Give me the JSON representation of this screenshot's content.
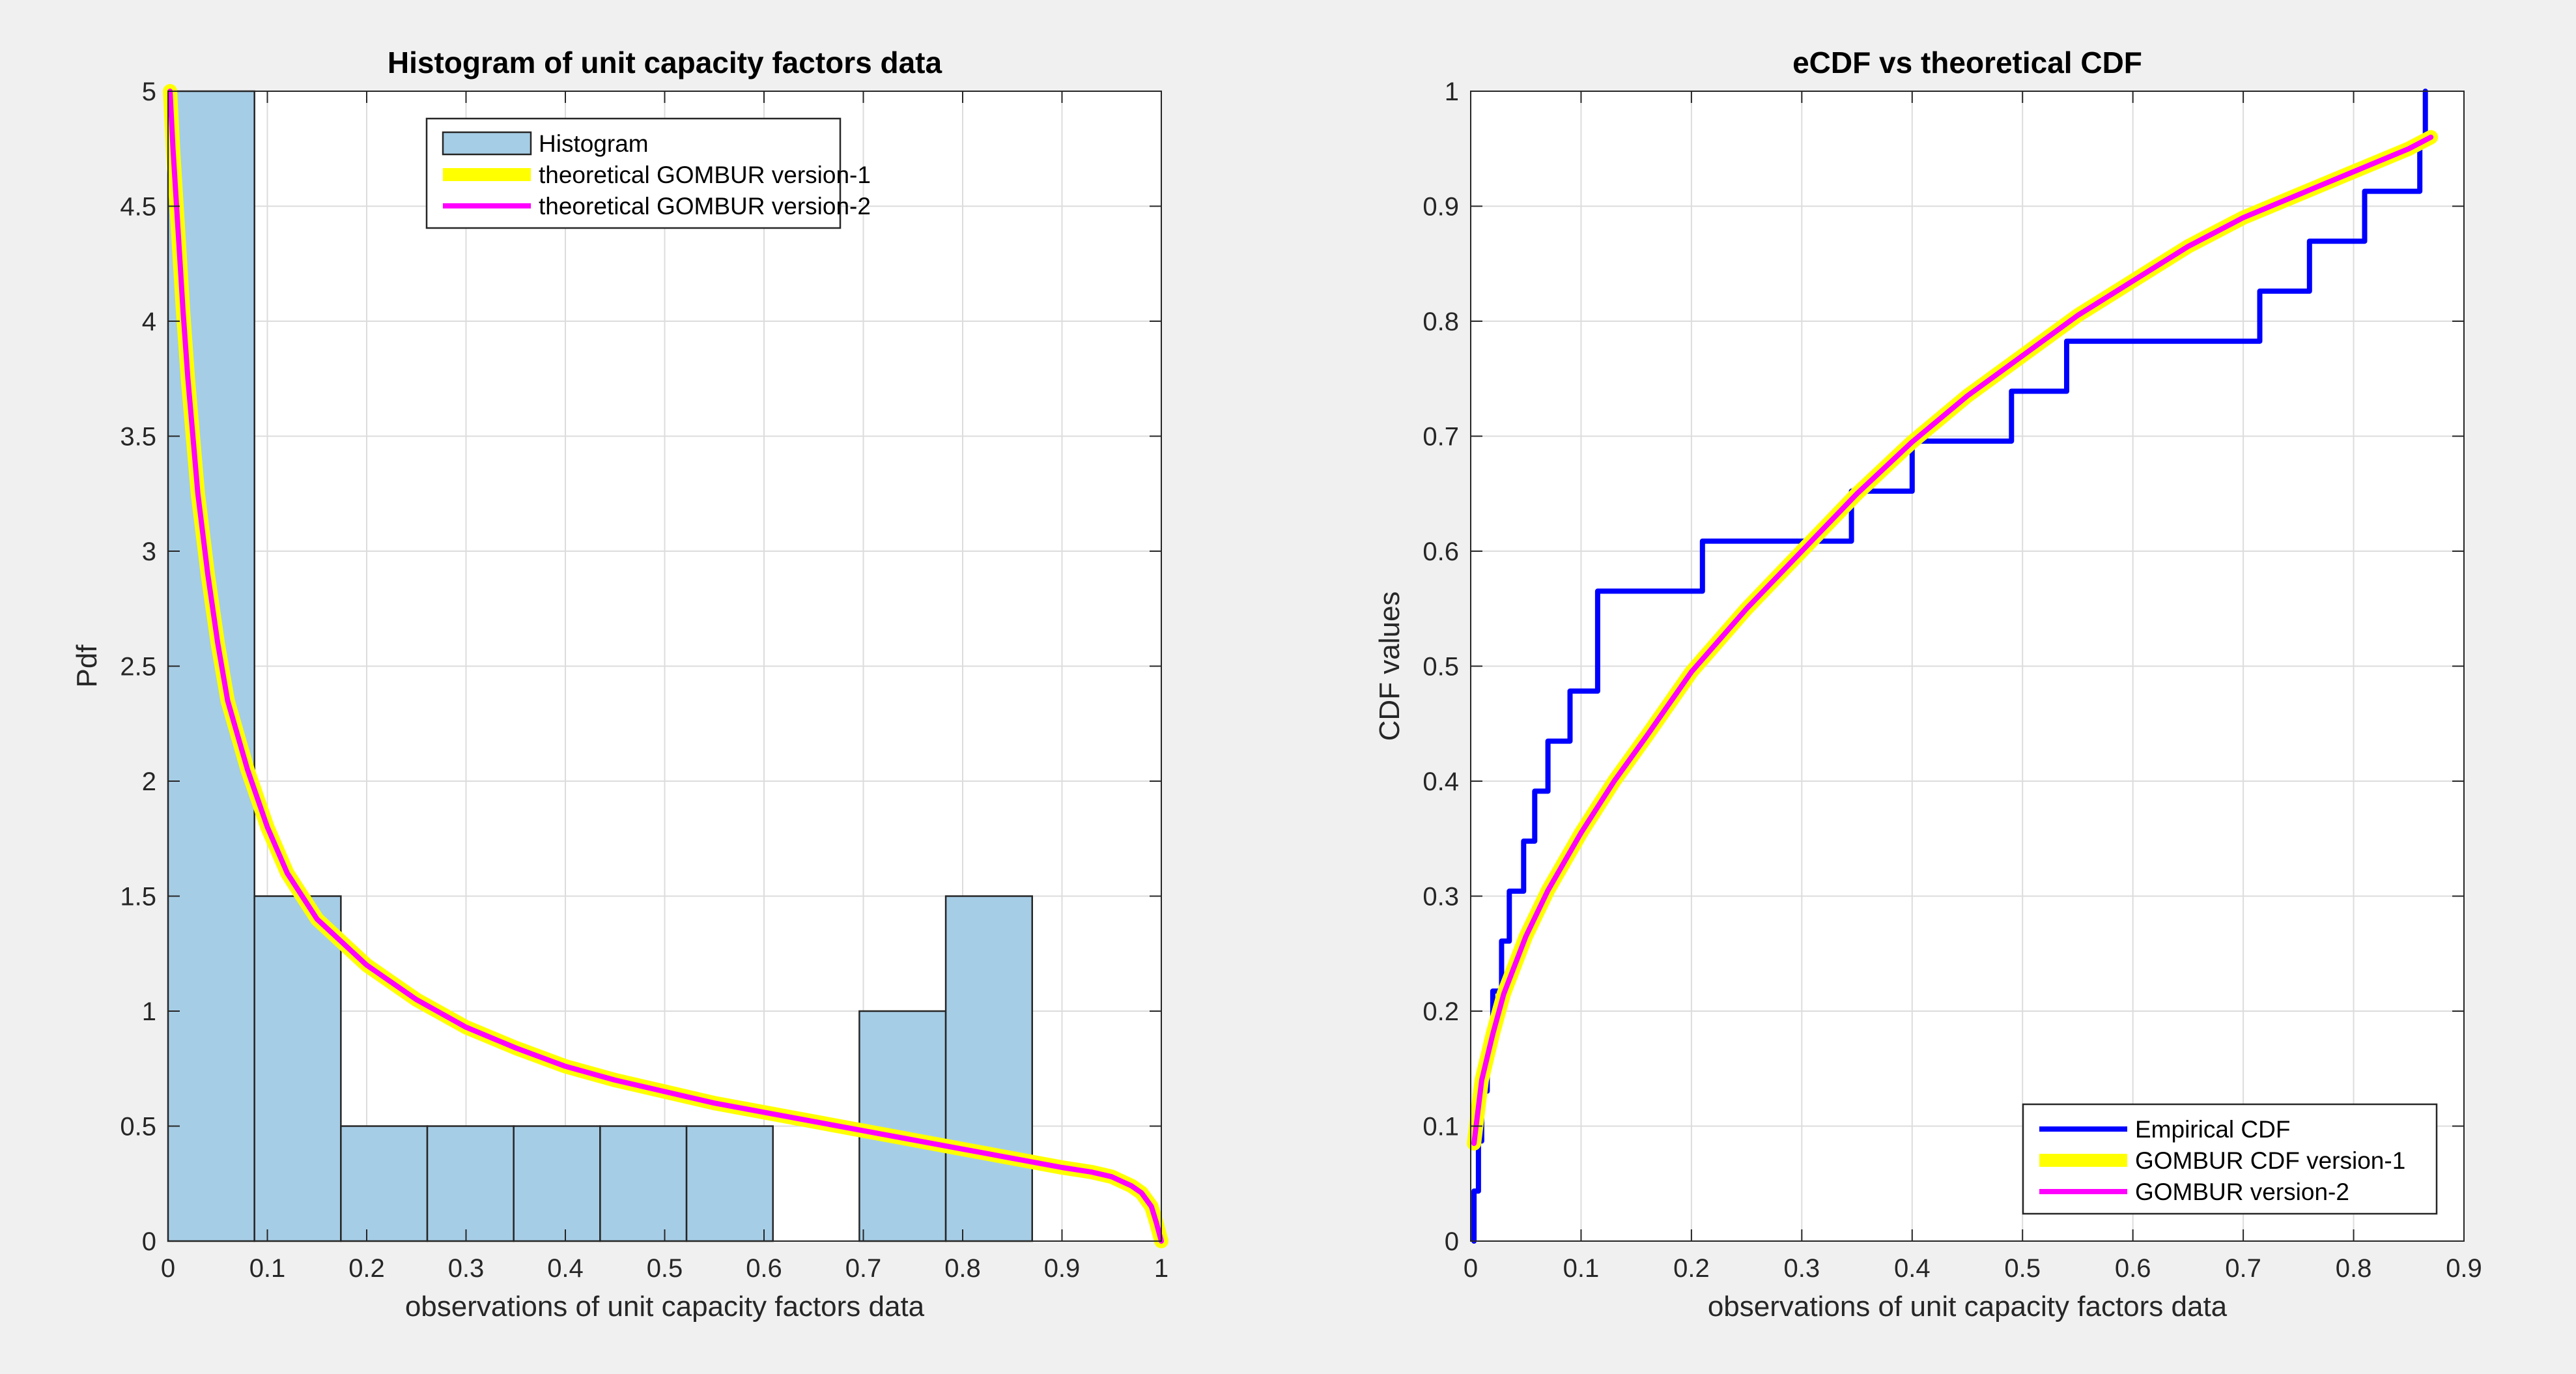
{
  "colors": {
    "figure_bg": "#f0f0f0",
    "histogram_fill": "#a6cde6",
    "histogram_edge": "#262626",
    "gombur_v1": "#ffff00",
    "gombur_v2": "#ff00ff",
    "empirical": "#0000ff"
  },
  "chart_data": [
    {
      "type": "bar",
      "title": "Histogram of unit capacity factors data",
      "xlabel": "observations of unit capacity factors data",
      "ylabel": "Pdf",
      "xlim": [
        0,
        1
      ],
      "ylim": [
        0,
        5
      ],
      "xticks": [
        0,
        0.1,
        0.2,
        0.3,
        0.4,
        0.5,
        0.6,
        0.7,
        0.8,
        0.9,
        1
      ],
      "xtick_labels": [
        "0",
        "0.1",
        "0.2",
        "0.3",
        "0.4",
        "0.5",
        "0.6",
        "0.7",
        "0.8",
        "0.9",
        "1"
      ],
      "yticks": [
        0,
        0.5,
        1,
        1.5,
        2,
        2.5,
        3,
        3.5,
        4,
        4.5,
        5
      ],
      "ytick_labels": [
        "0",
        "0.5",
        "1",
        "1.5",
        "2",
        "2.5",
        "3",
        "3.5",
        "4",
        "4.5",
        "5"
      ],
      "grid": true,
      "legend_position": "top-center",
      "histogram": {
        "name": "Histogram",
        "bin_edges": [
          0,
          0.087,
          0.174,
          0.261,
          0.348,
          0.435,
          0.522,
          0.609,
          0.696,
          0.783,
          0.87
        ],
        "values": [
          5,
          1.5,
          0.5,
          0.5,
          0.5,
          0.5,
          0.5,
          0,
          1,
          1.5
        ]
      },
      "series": [
        {
          "name": "theoretical GOMBUR version-1",
          "color_key": "gombur_v1",
          "x": [
            0.002,
            0.005,
            0.01,
            0.015,
            0.02,
            0.03,
            0.04,
            0.05,
            0.06,
            0.08,
            0.1,
            0.12,
            0.15,
            0.2,
            0.25,
            0.3,
            0.35,
            0.4,
            0.45,
            0.5,
            0.55,
            0.6,
            0.65,
            0.7,
            0.75,
            0.8,
            0.85,
            0.9,
            0.93,
            0.95,
            0.97,
            0.98,
            0.99,
            0.995,
            1.0
          ],
          "y": [
            5.0,
            4.75,
            4.4,
            4.05,
            3.75,
            3.25,
            2.9,
            2.6,
            2.35,
            2.05,
            1.8,
            1.6,
            1.4,
            1.2,
            1.05,
            0.93,
            0.84,
            0.76,
            0.7,
            0.65,
            0.6,
            0.56,
            0.52,
            0.48,
            0.44,
            0.4,
            0.36,
            0.32,
            0.3,
            0.28,
            0.24,
            0.21,
            0.15,
            0.08,
            0.0
          ]
        },
        {
          "name": "theoretical GOMBUR version-2",
          "color_key": "gombur_v2",
          "x": [
            0.002,
            0.005,
            0.01,
            0.015,
            0.02,
            0.03,
            0.04,
            0.05,
            0.06,
            0.08,
            0.1,
            0.12,
            0.15,
            0.2,
            0.25,
            0.3,
            0.35,
            0.4,
            0.45,
            0.5,
            0.55,
            0.6,
            0.65,
            0.7,
            0.75,
            0.8,
            0.85,
            0.9,
            0.93,
            0.95,
            0.97,
            0.98,
            0.99,
            0.995,
            1.0
          ],
          "y": [
            5.0,
            4.75,
            4.4,
            4.05,
            3.75,
            3.25,
            2.9,
            2.6,
            2.35,
            2.05,
            1.8,
            1.6,
            1.4,
            1.2,
            1.05,
            0.93,
            0.84,
            0.76,
            0.7,
            0.65,
            0.6,
            0.56,
            0.52,
            0.48,
            0.44,
            0.4,
            0.36,
            0.32,
            0.3,
            0.28,
            0.24,
            0.21,
            0.15,
            0.08,
            0.0
          ]
        }
      ]
    },
    {
      "type": "line",
      "title": "eCDF vs theoretical CDF",
      "xlabel": "observations of unit capacity factors data",
      "ylabel": "CDF values",
      "xlim": [
        0,
        0.9
      ],
      "ylim": [
        0,
        1
      ],
      "xticks": [
        0,
        0.1,
        0.2,
        0.3,
        0.4,
        0.5,
        0.6,
        0.7,
        0.8,
        0.9
      ],
      "xtick_labels": [
        "0",
        "0.1",
        "0.2",
        "0.3",
        "0.4",
        "0.5",
        "0.6",
        "0.7",
        "0.8",
        "0.9"
      ],
      "yticks": [
        0,
        0.1,
        0.2,
        0.3,
        0.4,
        0.5,
        0.6,
        0.7,
        0.8,
        0.9,
        1
      ],
      "ytick_labels": [
        "0",
        "0.1",
        "0.2",
        "0.3",
        "0.4",
        "0.5",
        "0.6",
        "0.7",
        "0.8",
        "0.9",
        "1"
      ],
      "grid": true,
      "legend_position": "bottom-right",
      "series": [
        {
          "name": "Empirical CDF",
          "style": "step",
          "color_key": "empirical",
          "x": [
            0.003,
            0.007,
            0.01,
            0.015,
            0.02,
            0.028,
            0.035,
            0.048,
            0.058,
            0.07,
            0.09,
            0.115,
            0.21,
            0.345,
            0.4,
            0.49,
            0.54,
            0.715,
            0.76,
            0.81,
            0.86,
            0.865
          ],
          "y": [
            0.0435,
            0.087,
            0.1304,
            0.1739,
            0.2174,
            0.2609,
            0.3043,
            0.3478,
            0.3913,
            0.4348,
            0.4783,
            0.5652,
            0.6087,
            0.6522,
            0.6957,
            0.7391,
            0.7826,
            0.8261,
            0.8696,
            0.913,
            0.9565,
            1.0
          ]
        },
        {
          "name": "GOMBUR CDF version-1",
          "color_key": "gombur_v1",
          "x": [
            0.003,
            0.01,
            0.02,
            0.03,
            0.05,
            0.07,
            0.1,
            0.13,
            0.16,
            0.2,
            0.25,
            0.3,
            0.35,
            0.4,
            0.45,
            0.5,
            0.55,
            0.6,
            0.65,
            0.7,
            0.75,
            0.8,
            0.85,
            0.87
          ],
          "y": [
            0.085,
            0.14,
            0.18,
            0.215,
            0.265,
            0.305,
            0.355,
            0.4,
            0.44,
            0.495,
            0.55,
            0.6,
            0.65,
            0.695,
            0.735,
            0.77,
            0.805,
            0.835,
            0.865,
            0.89,
            0.91,
            0.93,
            0.95,
            0.96
          ]
        },
        {
          "name": "GOMBUR version-2",
          "color_key": "gombur_v2",
          "x": [
            0.003,
            0.01,
            0.02,
            0.03,
            0.05,
            0.07,
            0.1,
            0.13,
            0.16,
            0.2,
            0.25,
            0.3,
            0.35,
            0.4,
            0.45,
            0.5,
            0.55,
            0.6,
            0.65,
            0.7,
            0.75,
            0.8,
            0.85,
            0.87
          ],
          "y": [
            0.085,
            0.14,
            0.18,
            0.215,
            0.265,
            0.305,
            0.355,
            0.4,
            0.44,
            0.495,
            0.55,
            0.6,
            0.65,
            0.695,
            0.735,
            0.77,
            0.805,
            0.835,
            0.865,
            0.89,
            0.91,
            0.93,
            0.95,
            0.96
          ]
        }
      ]
    }
  ]
}
